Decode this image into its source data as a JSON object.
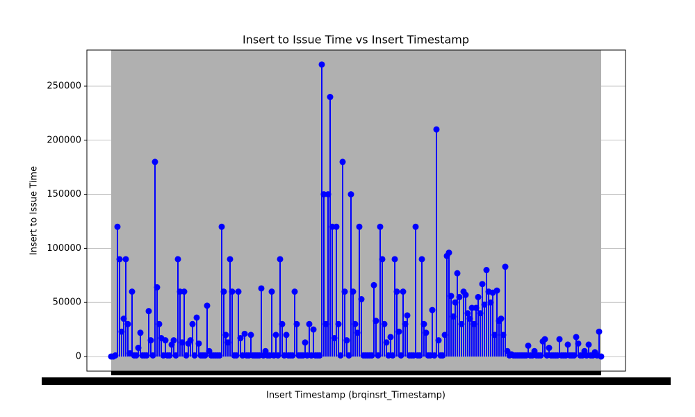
{
  "chart_data": {
    "type": "stem",
    "title": "Insert to Issue Time vs Insert Timestamp",
    "x_label": "Insert Timestamp (brqinsrt_Timestamp)",
    "y_label": "Insert to Issue Time",
    "color": "#0000ff",
    "grid": true,
    "xgrid": true,
    "ylim": [
      -13500,
      283400
    ],
    "yticks": [
      0,
      50000,
      100000,
      150000,
      200000,
      250000
    ],
    "categories": [
      null,
      null,
      null,
      null,
      null,
      null,
      null,
      null,
      null,
      null,
      null,
      null,
      null,
      null,
      null,
      null,
      null,
      null,
      null,
      null,
      null,
      null,
      null,
      null,
      null,
      null,
      null,
      null,
      null,
      null,
      null,
      null,
      null,
      null,
      null,
      null,
      null,
      null,
      null,
      null,
      null,
      null,
      null,
      null,
      null,
      null,
      null,
      null,
      null,
      null,
      null,
      null,
      null,
      null,
      null,
      null,
      null,
      null,
      null,
      null,
      null,
      null,
      null,
      null,
      null,
      null,
      null,
      null,
      null,
      null,
      null,
      null,
      null,
      null,
      null,
      null,
      null,
      null,
      null,
      null,
      null,
      null,
      null,
      null,
      null,
      null,
      null,
      null,
      null,
      null,
      null,
      null,
      null,
      null,
      null,
      null,
      null,
      null,
      null,
      null,
      null,
      null,
      null,
      null,
      null,
      null,
      null,
      null,
      null,
      null,
      null,
      null,
      null,
      null,
      null,
      null,
      null,
      null,
      null,
      null,
      null,
      null,
      null,
      null,
      null,
      null,
      null,
      null,
      null,
      null,
      null,
      null,
      null,
      null,
      null,
      null,
      null,
      null,
      null,
      null,
      null,
      null,
      null,
      null,
      null,
      null,
      null,
      null,
      null,
      null,
      null,
      null,
      null,
      null,
      null,
      null,
      null,
      null,
      null,
      null,
      null,
      null,
      null,
      null,
      null,
      null,
      null,
      null,
      null,
      null,
      null,
      null,
      null,
      null,
      null,
      null,
      null,
      null,
      null,
      null,
      null,
      null,
      null,
      null,
      null,
      null,
      null,
      null,
      null,
      null,
      null,
      null,
      null,
      null,
      null,
      null,
      null,
      null,
      null,
      null,
      null,
      null,
      null,
      null,
      null,
      null,
      null,
      null,
      null,
      null,
      null,
      null,
      null,
      null,
      null,
      null,
      null,
      null,
      null,
      null,
      null,
      null,
      null,
      null,
      null,
      null,
      null,
      null,
      null,
      null,
      null,
      null,
      null,
      null,
      null,
      null
    ],
    "values": [
      0,
      0,
      1000,
      120000,
      90000,
      23000,
      35000,
      90000,
      30000,
      3000,
      60000,
      1000,
      1000,
      8000,
      22000,
      1000,
      1000,
      1000,
      42000,
      15000,
      1000,
      180000,
      64000,
      30000,
      17000,
      1000,
      15000,
      1000,
      1000,
      11000,
      15000,
      1000,
      90000,
      60000,
      13000,
      60000,
      1000,
      12000,
      15000,
      30000,
      1000,
      36000,
      12000,
      1000,
      1000,
      1000,
      47000,
      5000,
      1000,
      1000,
      1000,
      1000,
      1000,
      120000,
      60000,
      20000,
      13000,
      90000,
      60000,
      1000,
      1000,
      60000,
      17000,
      1000,
      21000,
      1000,
      1000,
      20000,
      1000,
      1000,
      1000,
      1000,
      63000,
      1000,
      5000,
      1000,
      1000,
      60000,
      1000,
      20000,
      1000,
      90000,
      30000,
      1000,
      20000,
      1000,
      1000,
      1000,
      60000,
      30000,
      1000,
      1000,
      1000,
      13000,
      1000,
      30000,
      1000,
      25000,
      1000,
      1000,
      1000,
      270000,
      150000,
      30000,
      150000,
      240000,
      120000,
      17000,
      120000,
      30000,
      1000,
      180000,
      60000,
      15000,
      1000,
      150000,
      60000,
      30000,
      22000,
      120000,
      53000,
      1000,
      1000,
      1000,
      1000,
      1000,
      66000,
      33000,
      1000,
      120000,
      90000,
      30000,
      13000,
      1000,
      18000,
      1000,
      90000,
      60000,
      23000,
      1000,
      60000,
      30000,
      38000,
      1000,
      1000,
      1000,
      120000,
      1000,
      1000,
      90000,
      30000,
      22000,
      1000,
      1000,
      43000,
      1000,
      210000,
      15000,
      1000,
      1000,
      20000,
      93000,
      96000,
      56000,
      37000,
      50000,
      77000,
      55000,
      30000,
      60000,
      57000,
      40000,
      35000,
      45000,
      30000,
      45000,
      55000,
      40000,
      67000,
      48000,
      80000,
      60000,
      50000,
      59000,
      20000,
      61000,
      33000,
      35000,
      20000,
      83000,
      5000,
      1000,
      2000,
      1000,
      1000,
      1000,
      1000,
      1000,
      1000,
      1000,
      10000,
      1000,
      1000,
      5000,
      1000,
      1000,
      1000,
      14000,
      16000,
      1000,
      8000,
      1000,
      1000,
      1000,
      1000,
      16000,
      1000,
      1000,
      1000,
      11000,
      1000,
      1000,
      1000,
      18000,
      12000,
      1000,
      1000,
      5000,
      1000,
      11000,
      1000,
      1000,
      4000,
      1000,
      23000,
      0
    ]
  }
}
